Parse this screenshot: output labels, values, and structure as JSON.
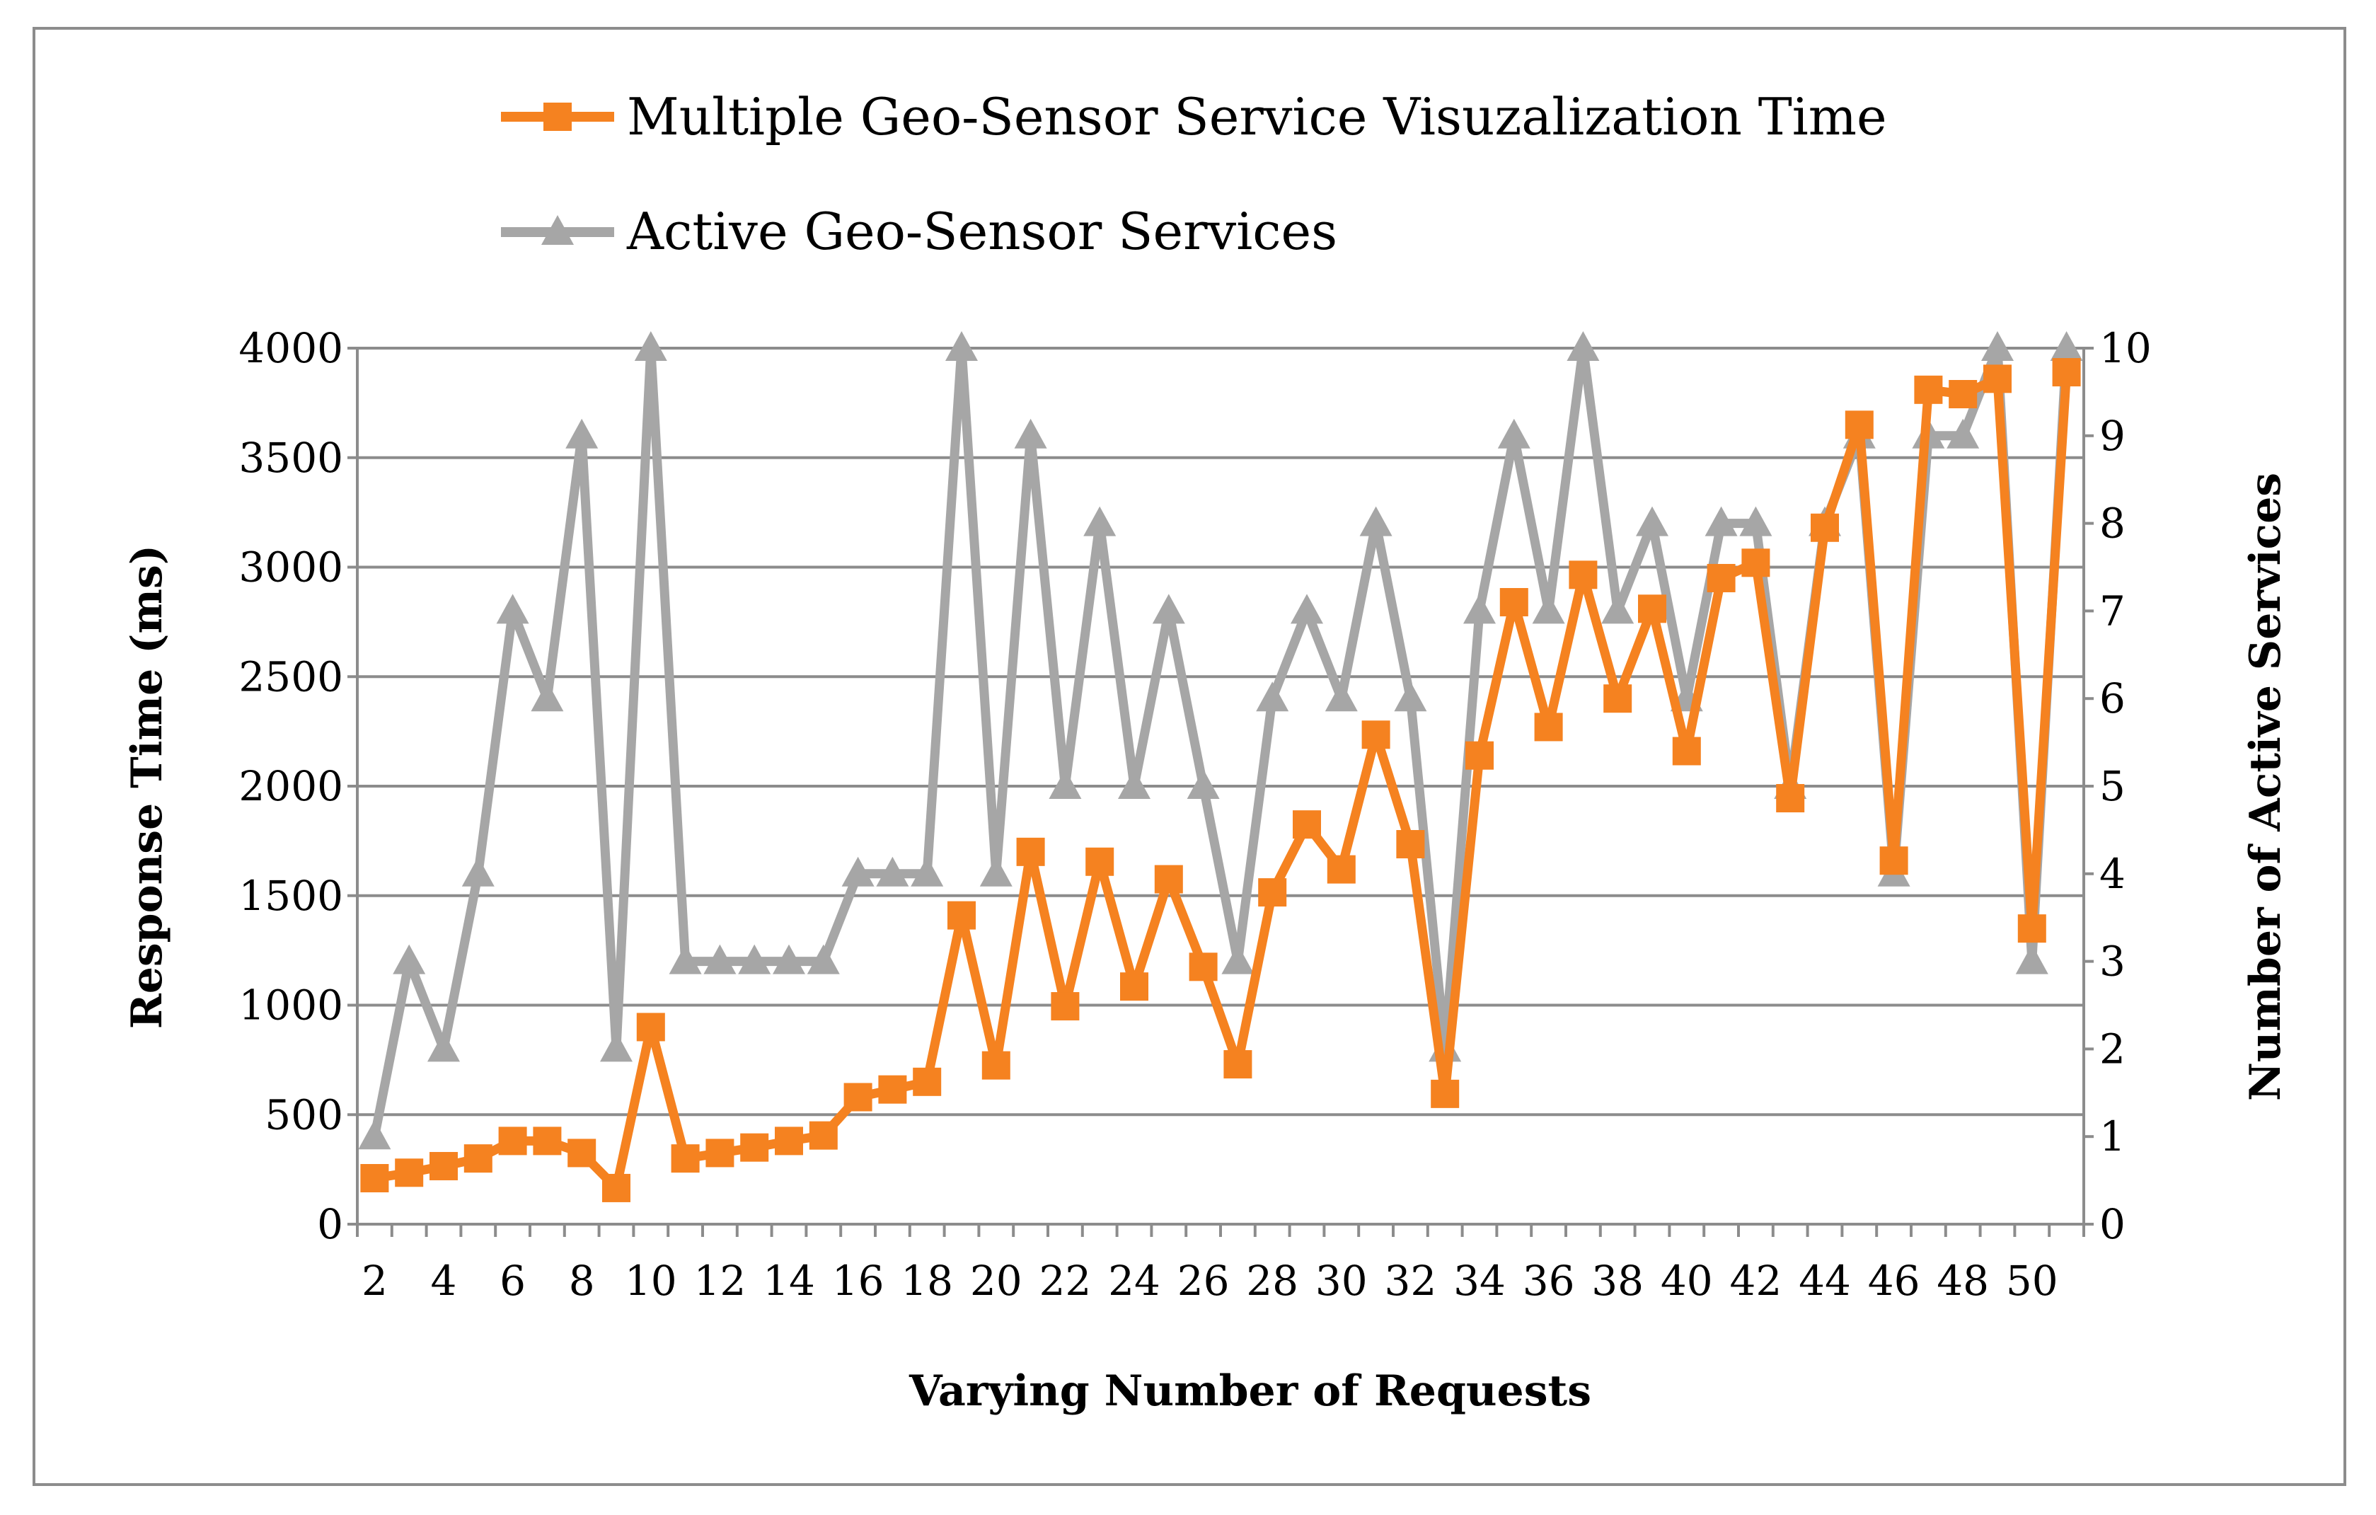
{
  "chart_data": {
    "type": "line",
    "title": "",
    "xlabel": "Varying Number of Requests",
    "ylabel": "Response Time (ms)",
    "y2label": "Number of Active Services",
    "ylim": [
      0,
      4000
    ],
    "y2lim": [
      0,
      10
    ],
    "yticks": [
      "0",
      "500",
      "1000",
      "1500",
      "2000",
      "2500",
      "3000",
      "3500",
      "4000"
    ],
    "y2ticks": [
      "0",
      "1",
      "2",
      "3",
      "4",
      "5",
      "6",
      "7",
      "8",
      "9",
      "10"
    ],
    "x": [
      2,
      3,
      4,
      5,
      6,
      7,
      8,
      9,
      10,
      11,
      12,
      13,
      14,
      15,
      16,
      17,
      18,
      19,
      20,
      21,
      22,
      23,
      24,
      25,
      26,
      27,
      28,
      29,
      30,
      31,
      32,
      33,
      34,
      35,
      36,
      37,
      38,
      39,
      40,
      41,
      42,
      43,
      44,
      45,
      46,
      47,
      48,
      49,
      50,
      51
    ],
    "xticks": [
      "2",
      "4",
      "6",
      "8",
      "10",
      "12",
      "14",
      "16",
      "18",
      "20",
      "22",
      "24",
      "26",
      "28",
      "30",
      "32",
      "34",
      "36",
      "38",
      "40",
      "42",
      "44",
      "46",
      "48",
      "50"
    ],
    "grid": true,
    "legend_position": "top",
    "series": [
      {
        "name": "Multiple Geo-Sensor Service Visuzalization Time",
        "axis": "left",
        "marker": "square",
        "color": "#f58220",
        "values": [
          210,
          235,
          265,
          300,
          380,
          380,
          325,
          165,
          900,
          300,
          325,
          350,
          380,
          405,
          580,
          615,
          650,
          1410,
          725,
          1700,
          995,
          1655,
          1085,
          1575,
          1175,
          730,
          1515,
          1825,
          1620,
          2235,
          1735,
          595,
          2140,
          2840,
          2270,
          2965,
          2400,
          2810,
          2160,
          2950,
          3020,
          1945,
          3180,
          3650,
          1660,
          3810,
          3790,
          3860,
          1350,
          3890
        ]
      },
      {
        "name": "Active Geo-Sensor Services",
        "axis": "right",
        "marker": "triangle",
        "color": "#a6a6a6",
        "values": [
          1,
          3,
          2,
          4,
          7,
          6,
          9,
          2,
          10,
          3,
          3,
          3,
          3,
          3,
          4,
          4,
          4,
          10,
          4,
          9,
          5,
          8,
          5,
          7,
          5,
          3,
          6,
          7,
          6,
          8,
          6,
          2,
          7,
          9,
          7,
          10,
          7,
          8,
          6,
          8,
          8,
          5,
          8,
          9,
          4,
          9,
          9,
          10,
          3,
          10
        ]
      }
    ]
  }
}
